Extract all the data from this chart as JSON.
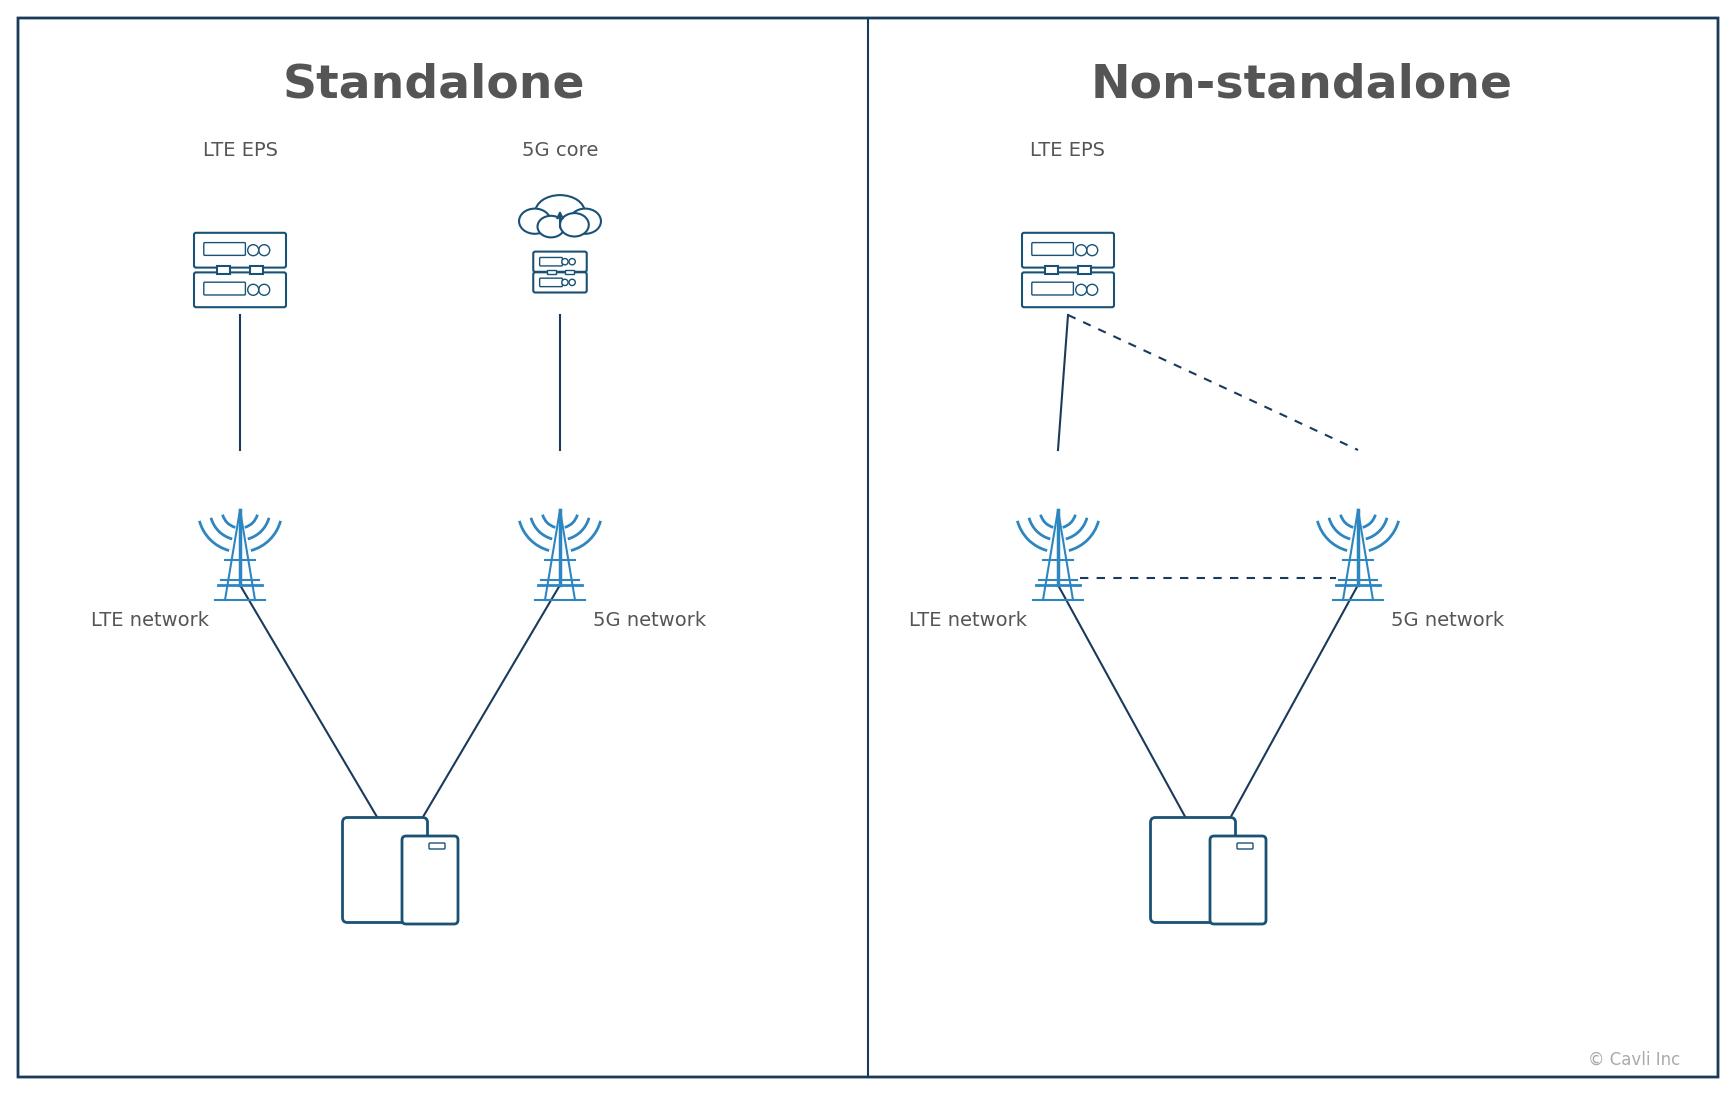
{
  "bg_color": "#ffffff",
  "panel_border_color": "#1a3a5c",
  "divider_color": "#1a3a5c",
  "icon_color": "#1a5276",
  "icon_blue": "#2e86c1",
  "line_color": "#1a3a5c",
  "dashed_color": "#1a3a5c",
  "text_color": "#555555",
  "title_color": "#555555",
  "label_color": "#555555",
  "left_title": "Standalone",
  "right_title": "Non-standalone",
  "lte_eps_label": "LTE EPS",
  "5g_core_label": "5G core",
  "lte_network_label": "LTE network",
  "5g_network_label": "5G network",
  "copyright": "© Cavli Inc",
  "title_fontsize": 34,
  "label_fontsize": 14,
  "copyright_fontsize": 12
}
